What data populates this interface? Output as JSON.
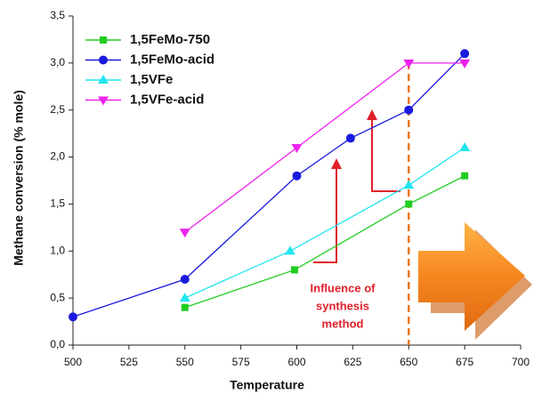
{
  "chart_data": {
    "type": "line",
    "x_label": "Temperature",
    "y_label": "Methane conversion  (% mole)",
    "xlim": [
      500,
      700
    ],
    "xticks": [
      500,
      525,
      550,
      575,
      600,
      625,
      650,
      675,
      700
    ],
    "ylim": [
      0,
      3.5
    ],
    "yticks": [
      {
        "value": 0,
        "label": "0,0"
      },
      {
        "value": 0.5,
        "label": "0,5"
      },
      {
        "value": 1,
        "label": "1,0"
      },
      {
        "value": 1.5,
        "label": "1,5"
      },
      {
        "value": 2,
        "label": "2,0"
      },
      {
        "value": 2.5,
        "label": "2,5"
      },
      {
        "value": 3,
        "label": "3,0"
      },
      {
        "value": 3.5,
        "label": "3,5"
      }
    ],
    "legend": "upper left",
    "series": [
      {
        "name": "1,5FeMo-750",
        "color": "#22cc22",
        "marker": "square",
        "x": [
          550,
          599,
          650,
          675
        ],
        "values": [
          0.4,
          0.8,
          1.5,
          1.8
        ]
      },
      {
        "name": "1,5FeMo-acid",
        "color": "#1a1adf",
        "marker": "circle",
        "x": [
          500,
          550,
          600,
          624,
          650,
          675
        ],
        "values": [
          0.3,
          0.7,
          1.8,
          2.2,
          2.5,
          3.1
        ]
      },
      {
        "name": "1,5VFe",
        "color": "#22e5f0",
        "marker": "triangle-up",
        "x": [
          550,
          597,
          650,
          675
        ],
        "values": [
          0.5,
          1.0,
          1.7,
          2.1
        ]
      },
      {
        "name": "1,5VFe-acid",
        "color": "#ee22ee",
        "marker": "triangle-down",
        "x": [
          550,
          600,
          650,
          675
        ],
        "values": [
          1.2,
          2.1,
          3.0,
          3.0
        ]
      }
    ],
    "reference_line": {
      "x": 650,
      "color": "#e87722"
    },
    "annotation": [
      "Influence of",
      "synthesis",
      "method"
    ]
  }
}
